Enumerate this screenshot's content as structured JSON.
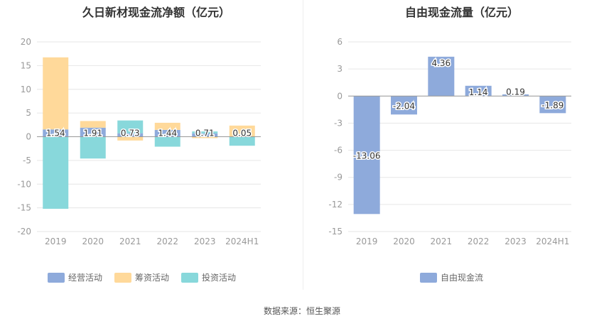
{
  "chart_data": [
    {
      "type": "bar",
      "title": "久日新材现金流净额（亿元）",
      "categories": [
        "2019",
        "2020",
        "2021",
        "2022",
        "2023",
        "2024H1"
      ],
      "ylim": [
        -20,
        20
      ],
      "yticks": [
        -20,
        -15,
        -10,
        -5,
        0,
        5,
        10,
        15,
        20
      ],
      "grid": true,
      "legend_position": "bottom",
      "stacked": true,
      "series": [
        {
          "name": "经营活动",
          "color": "#8eaadb",
          "values": [
            1.54,
            1.91,
            0.73,
            1.44,
            0.71,
            0.05
          ]
        },
        {
          "name": "筹资活动",
          "color": "#ffd99a",
          "values": [
            15.2,
            1.4,
            -0.8,
            1.5,
            -0.3,
            2.3
          ]
        },
        {
          "name": "投资活动",
          "color": "#88d8db",
          "values": [
            -15.2,
            -4.6,
            2.7,
            -2.1,
            0.4,
            -1.9
          ]
        }
      ],
      "data_labels": [
        "1.54",
        "1.91",
        "0.73",
        "1.44",
        "0.71",
        "0.05"
      ]
    },
    {
      "type": "bar",
      "title": "自由现金流量（亿元）",
      "categories": [
        "2019",
        "2020",
        "2021",
        "2022",
        "2023",
        "2024H1"
      ],
      "ylim": [
        -15,
        6
      ],
      "yticks": [
        -15,
        -12,
        -9,
        -6,
        -3,
        0,
        3,
        6
      ],
      "grid": true,
      "legend_position": "bottom",
      "series": [
        {
          "name": "自由现金流",
          "color": "#8eaadb",
          "values": [
            -13.06,
            -2.04,
            4.36,
            1.14,
            0.19,
            -1.89
          ]
        }
      ],
      "data_labels": [
        "-13.06",
        "-2.04",
        "4.36",
        "1.14",
        "0.19",
        "-1.89"
      ]
    }
  ],
  "footer": {
    "source": "数据来源：恒生聚源"
  },
  "colors": {
    "grid": "#e6e6e6",
    "axis": "#999999",
    "tick_text": "#999999",
    "label_text": "#333333"
  }
}
